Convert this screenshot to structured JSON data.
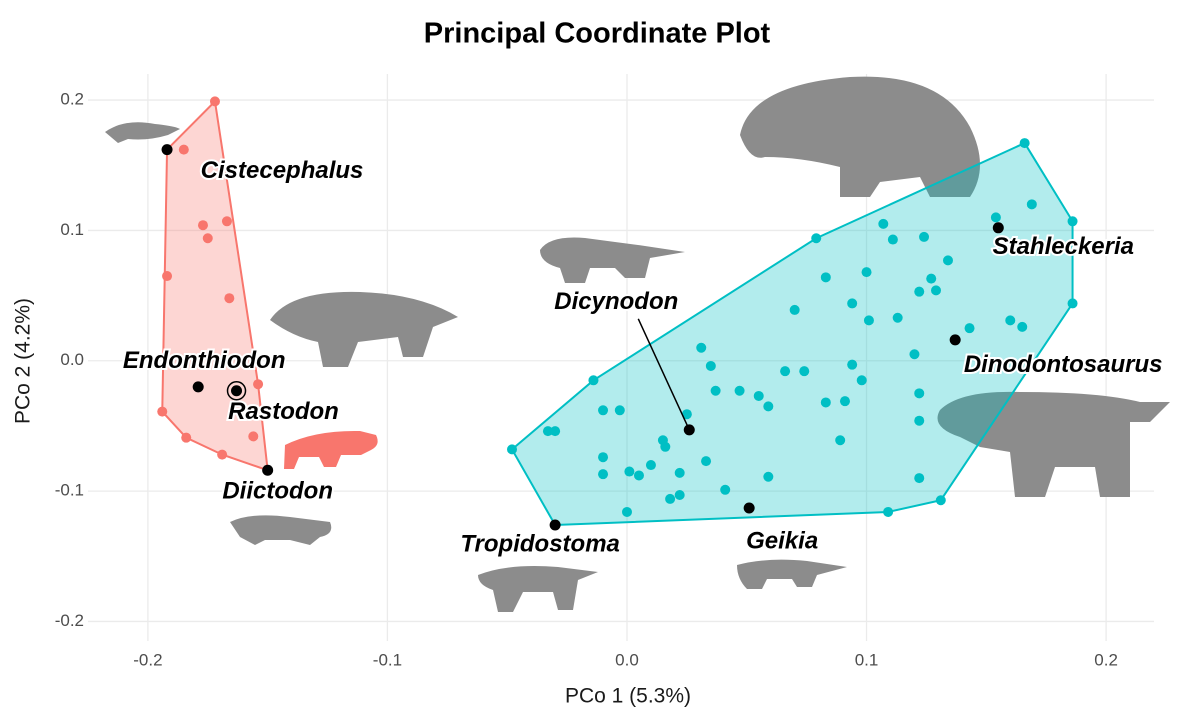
{
  "chart_data": {
    "type": "scatter",
    "title": "Principal Coordinate Plot",
    "x_label": "PCo 1 (5.3%)",
    "y_label": "PCo 2 (4.2%)",
    "xlim": [
      -0.225,
      0.22
    ],
    "ylim": [
      -0.215,
      0.22
    ],
    "xticks": [
      -0.2,
      -0.1,
      {
        "value": 0,
        "label": "0.0"
      },
      0.1,
      0.2
    ],
    "yticks": [
      -0.2,
      -0.1,
      {
        "value": 0,
        "label": "0.0"
      },
      0.1,
      0.2
    ],
    "grid": true,
    "series": [
      {
        "color": "#f8766d",
        "x": [
          -0.172,
          -0.185,
          -0.177,
          -0.167,
          -0.175,
          -0.192,
          -0.166,
          -0.154,
          -0.156,
          -0.169,
          -0.184,
          -0.194
        ],
        "y": [
          0.199,
          0.162,
          0.104,
          0.107,
          0.094,
          0.065,
          0.048,
          -0.018,
          -0.058,
          -0.072,
          -0.059,
          -0.039
        ],
        "labeled": {
          "labels": [
            "Cistecephalus",
            "Endonthiodon",
            "Rastodon",
            "Diictodon"
          ],
          "x": [
            -0.192,
            -0.179,
            -0.163,
            -0.15
          ],
          "y": [
            0.162,
            -0.02,
            -0.023,
            -0.084
          ]
        }
      },
      {
        "color": "#00bfc4",
        "x": [
          0.166,
          0.169,
          0.186,
          0.154,
          0.107,
          0.111,
          0.124,
          0.134,
          0.079,
          0.083,
          0.1,
          0.094,
          0.127,
          0.122,
          0.129,
          0.186,
          0.16,
          0.165,
          0.143,
          0.113,
          0.101,
          0.07,
          0.031,
          0.035,
          0.037,
          0.047,
          0.066,
          0.074,
          0.083,
          0.091,
          0.094,
          0.098,
          0.12,
          0.122,
          0.055,
          0.059,
          -0.014,
          -0.003,
          -0.01,
          0.025,
          0.015,
          0.016,
          0.033,
          0.022,
          0.01,
          0.001,
          0.005,
          -0.01,
          -0.01,
          -0.033,
          -0.03,
          -0.048,
          0.018,
          0.022,
          0.041,
          0.059,
          0.0,
          0.089,
          0.122,
          0.122,
          0.109,
          0.131
        ],
        "y": [
          0.167,
          0.12,
          0.107,
          0.11,
          0.105,
          0.093,
          0.095,
          0.077,
          0.094,
          0.064,
          0.068,
          0.044,
          0.063,
          0.053,
          0.054,
          0.044,
          0.031,
          0.026,
          0.025,
          0.033,
          0.031,
          0.039,
          0.01,
          -0.004,
          -0.023,
          -0.023,
          -0.008,
          -0.008,
          -0.032,
          -0.031,
          -0.003,
          -0.015,
          0.005,
          -0.025,
          -0.027,
          -0.035,
          -0.015,
          -0.038,
          -0.038,
          -0.041,
          -0.061,
          -0.066,
          -0.077,
          -0.086,
          -0.08,
          -0.085,
          -0.088,
          -0.074,
          -0.087,
          -0.054,
          -0.054,
          -0.068,
          -0.106,
          -0.103,
          -0.099,
          -0.089,
          -0.116,
          -0.061,
          -0.046,
          -0.09,
          -0.116,
          -0.107
        ],
        "labeled": {
          "labels": [
            "Dicynodon",
            "Geikia",
            "Tropidostoma",
            "Stahleckeria",
            "Dinodontosaurus"
          ],
          "x": [
            0.026,
            0.051,
            -0.03,
            0.155,
            0.137
          ],
          "y": [
            -0.053,
            -0.113,
            -0.126,
            0.102,
            0.016
          ]
        }
      }
    ]
  }
}
